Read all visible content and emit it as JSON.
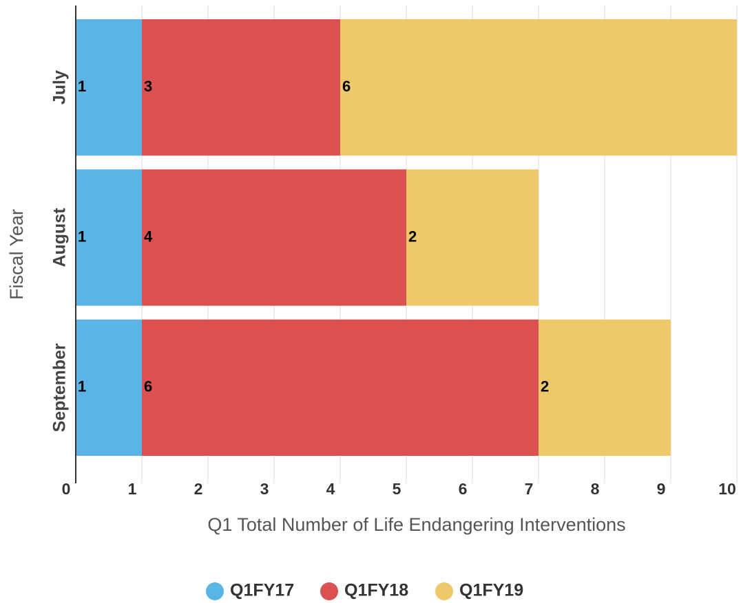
{
  "chart_data": {
    "type": "bar",
    "xlabel": "Q1 Total Number of Life Endangering Interventions",
    "ylabel": "Fiscal Year",
    "categories": [
      "July",
      "August",
      "September"
    ],
    "series": [
      {
        "name": "Q1FY17",
        "color": "#5ab4e5",
        "values": [
          1,
          1,
          1
        ]
      },
      {
        "name": "Q1FY18",
        "color": "#db5152",
        "values": [
          3,
          4,
          6
        ]
      },
      {
        "name": "Q1FY19",
        "color": "#eec96a",
        "values": [
          6,
          2,
          2
        ]
      }
    ],
    "xlim": [
      0,
      10
    ],
    "xticks": [
      0,
      1,
      2,
      3,
      4,
      5,
      6,
      7,
      8,
      9,
      10
    ],
    "grid": true
  }
}
